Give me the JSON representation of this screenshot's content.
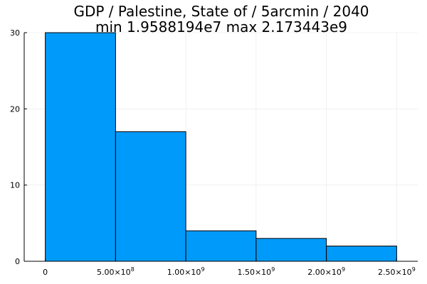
{
  "chart_data": {
    "type": "bar",
    "title": {
      "line1": "GDP / Palestine, State of / 5arcmin / 2040",
      "line2": "min 1.9588194e7  max 2.173443e9"
    },
    "xlabel": "",
    "ylabel": "",
    "bin_edges": [
      0,
      500000000,
      1000000000,
      1500000000,
      2000000000,
      2500000000
    ],
    "values": [
      30,
      17,
      4,
      3,
      2
    ],
    "xlim": [
      -150000000,
      2650000000
    ],
    "ylim": [
      0,
      30
    ],
    "x_ticks": [
      {
        "value": 0,
        "mantissa": "0",
        "exponent": ""
      },
      {
        "value": 500000000,
        "mantissa": "5.00×10",
        "exponent": "8"
      },
      {
        "value": 1000000000,
        "mantissa": "1.00×10",
        "exponent": "9"
      },
      {
        "value": 1500000000,
        "mantissa": "1.50×10",
        "exponent": "9"
      },
      {
        "value": 2000000000,
        "mantissa": "2.00×10",
        "exponent": "9"
      },
      {
        "value": 2500000000,
        "mantissa": "2.50×10",
        "exponent": "9"
      }
    ],
    "y_ticks": [
      {
        "value": 0,
        "label": "0"
      },
      {
        "value": 10,
        "label": "10"
      },
      {
        "value": 20,
        "label": "20"
      },
      {
        "value": 30,
        "label": "30"
      }
    ],
    "grid": true,
    "legend": "none",
    "colors": {
      "bar_fill": "#009AFA",
      "bar_stroke": "#000000",
      "grid": "#e8e8e8",
      "axis": "#000000"
    }
  }
}
